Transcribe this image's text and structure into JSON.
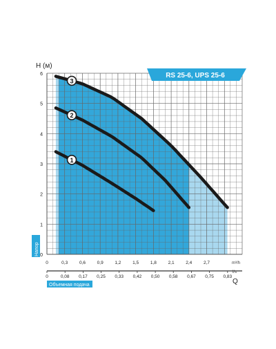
{
  "chart_data": {
    "type": "line",
    "title": "RS 25-6, UPS 25-6",
    "ylabel": "H (м)",
    "ylabel_side": "Напор",
    "xlabel_letter": "Q",
    "xlabel_side": "Объемная подача",
    "x_unit_top": "m³/h",
    "x_unit_bottom": "l/s",
    "xlim": [
      0,
      3.3
    ],
    "ylim": [
      0,
      6
    ],
    "grid": true,
    "x_ticks_top": [
      "0",
      "0,3",
      "0,6",
      "0,9",
      "1,2",
      "1,5",
      "1,8",
      "2,1",
      "2,4",
      "2,7"
    ],
    "x_ticks_top_values": [
      0,
      0.3,
      0.6,
      0.9,
      1.2,
      1.5,
      1.8,
      2.1,
      2.4,
      2.7
    ],
    "x_ticks_bottom": [
      "0",
      "0,08",
      "0,17",
      "0,25",
      "0,33",
      "0,42",
      "0,50",
      "0,58",
      "0,67",
      "0,75",
      "0,83"
    ],
    "y_ticks": [
      "0",
      "1",
      "2",
      "3",
      "4",
      "5",
      "6"
    ],
    "y_ticks_values": [
      0,
      1,
      2,
      3,
      4,
      5,
      6
    ],
    "series": [
      {
        "name": "1",
        "x": [
          0.15,
          0.6,
          1.1,
          1.5,
          1.8
        ],
        "y": [
          3.4,
          2.95,
          2.35,
          1.85,
          1.45
        ]
      },
      {
        "name": "2",
        "x": [
          0.15,
          0.6,
          1.1,
          1.6,
          2.0,
          2.4
        ],
        "y": [
          4.85,
          4.45,
          3.9,
          3.2,
          2.45,
          1.55
        ]
      },
      {
        "name": "3",
        "x": [
          0.15,
          0.6,
          1.1,
          1.6,
          2.1,
          2.6,
          3.05
        ],
        "y": [
          5.9,
          5.65,
          5.2,
          4.5,
          3.6,
          2.55,
          1.55
        ]
      }
    ],
    "operating_range": {
      "x_min": 0.2,
      "x_max": 2.4
    },
    "colors": {
      "fill_dark": "#1e9fd6",
      "fill_light": "#a9d8ef",
      "grid": "#666666",
      "curve": "#1a1a1a",
      "label_bg": "#2aa7db"
    }
  }
}
